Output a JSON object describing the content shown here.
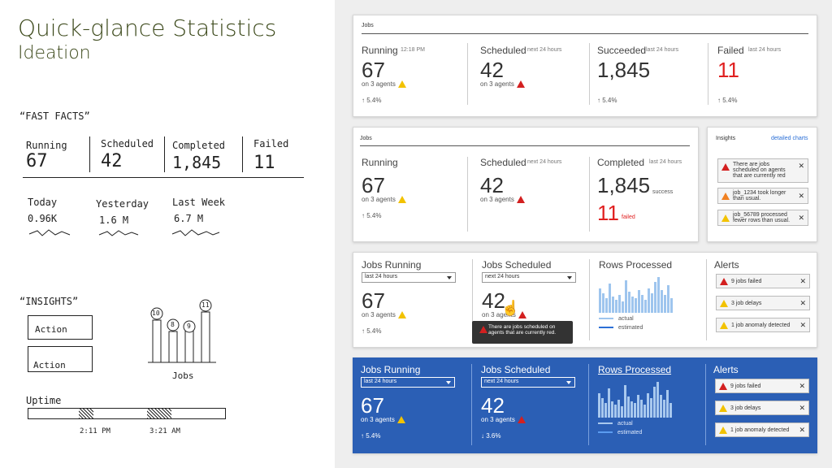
{
  "title": "Quick-glance Statistics",
  "subtitle": "Ideation",
  "sketch": {
    "fast_facts": "“FAST FACTS”",
    "running": "Running",
    "running_val": "67",
    "scheduled": "Scheduled",
    "scheduled_val": "42",
    "completed": "Completed",
    "completed_val": "1,845",
    "failed": "Failed",
    "failed_val": "11",
    "today": "Today",
    "today_val": "0.96K",
    "yesterday": "Yesterday",
    "yesterday_val": "1.6 M",
    "last_week": "Last Week",
    "last_week_val": "6.7 M",
    "insights": "“INSIGHTS”",
    "action1": "Action",
    "action2": "Action",
    "bubbles": [
      "10",
      "8",
      "9",
      "11"
    ],
    "jobs": "Jobs",
    "uptime": "Uptime",
    "t1": "2:11 PM",
    "t2": "3:21 AM"
  },
  "card1": {
    "header": "Jobs",
    "running": "Running",
    "running_time": "12:18 PM",
    "running_val": "67",
    "running_agents": "on 3 agents",
    "running_trend": "↑ 5.4%",
    "scheduled": "Scheduled",
    "scheduled_time": "next 24 hours",
    "scheduled_val": "42",
    "scheduled_agents": "on 3 agents",
    "succeeded": "Succeeded",
    "succeeded_time": "last 24 hours",
    "succeeded_val": "1,845",
    "succeeded_trend": "↑ 5.4%",
    "failed": "Failed",
    "failed_time": "last 24 hours",
    "failed_val": "11",
    "failed_trend": "↑ 5.4%"
  },
  "card2": {
    "header": "Jobs",
    "running": "Running",
    "running_val": "67",
    "running_agents": "on 3 agents",
    "running_trend": "↑ 5.4%",
    "scheduled": "Scheduled",
    "scheduled_time": "next 24 hours",
    "scheduled_val": "42",
    "scheduled_agents": "on 3 agents",
    "completed": "Completed",
    "completed_time": "last 24 hours",
    "completed_val": "1,845",
    "success": "success",
    "failed_val": "11",
    "failed": "failed"
  },
  "insights": {
    "header": "Insights",
    "link": "detailed charts",
    "items": [
      "There are jobs scheduled on agents that are currently red",
      "job_1234 took longer than usual.",
      "job_56789 processed fewer rows than usual."
    ]
  },
  "card3": {
    "running": "Jobs Running",
    "running_sel": "last 24 hours",
    "running_val": "67",
    "running_agents": "on 3 agents",
    "running_trend": "↑ 5.4%",
    "scheduled": "Jobs Scheduled",
    "scheduled_sel": "next 24 hours",
    "scheduled_val": "42",
    "scheduled_agents": "on 3 agents",
    "tooltip": "There are jobs scheduled on agents that are currently red.",
    "rows": "Rows Processed",
    "actual": "actual",
    "estimated": "estimated",
    "alerts": "Alerts",
    "alert_items": [
      "9 jobs failed",
      "3 job delays",
      "1 job anomaly detected"
    ]
  },
  "card4": {
    "running": "Jobs Running",
    "running_sel": "last 24 hours",
    "running_val": "67",
    "running_agents": "on 3 agents",
    "running_trend": "↑ 5.4%",
    "scheduled": "Jobs Scheduled",
    "scheduled_sel": "next 24 hours",
    "scheduled_val": "42",
    "scheduled_agents": "on 3 agents",
    "scheduled_trend": "↓ 3.6%",
    "rows": "Rows Processed",
    "actual": "actual",
    "estimated": "estimated",
    "alerts": "Alerts",
    "alert_items": [
      "9 jobs failed",
      "3 job delays",
      "1 job anomaly detected"
    ]
  },
  "colors": {
    "accent_blue": "#2b5fb5",
    "failed_red": "#e02020",
    "warn_yellow": "#f2c200"
  }
}
